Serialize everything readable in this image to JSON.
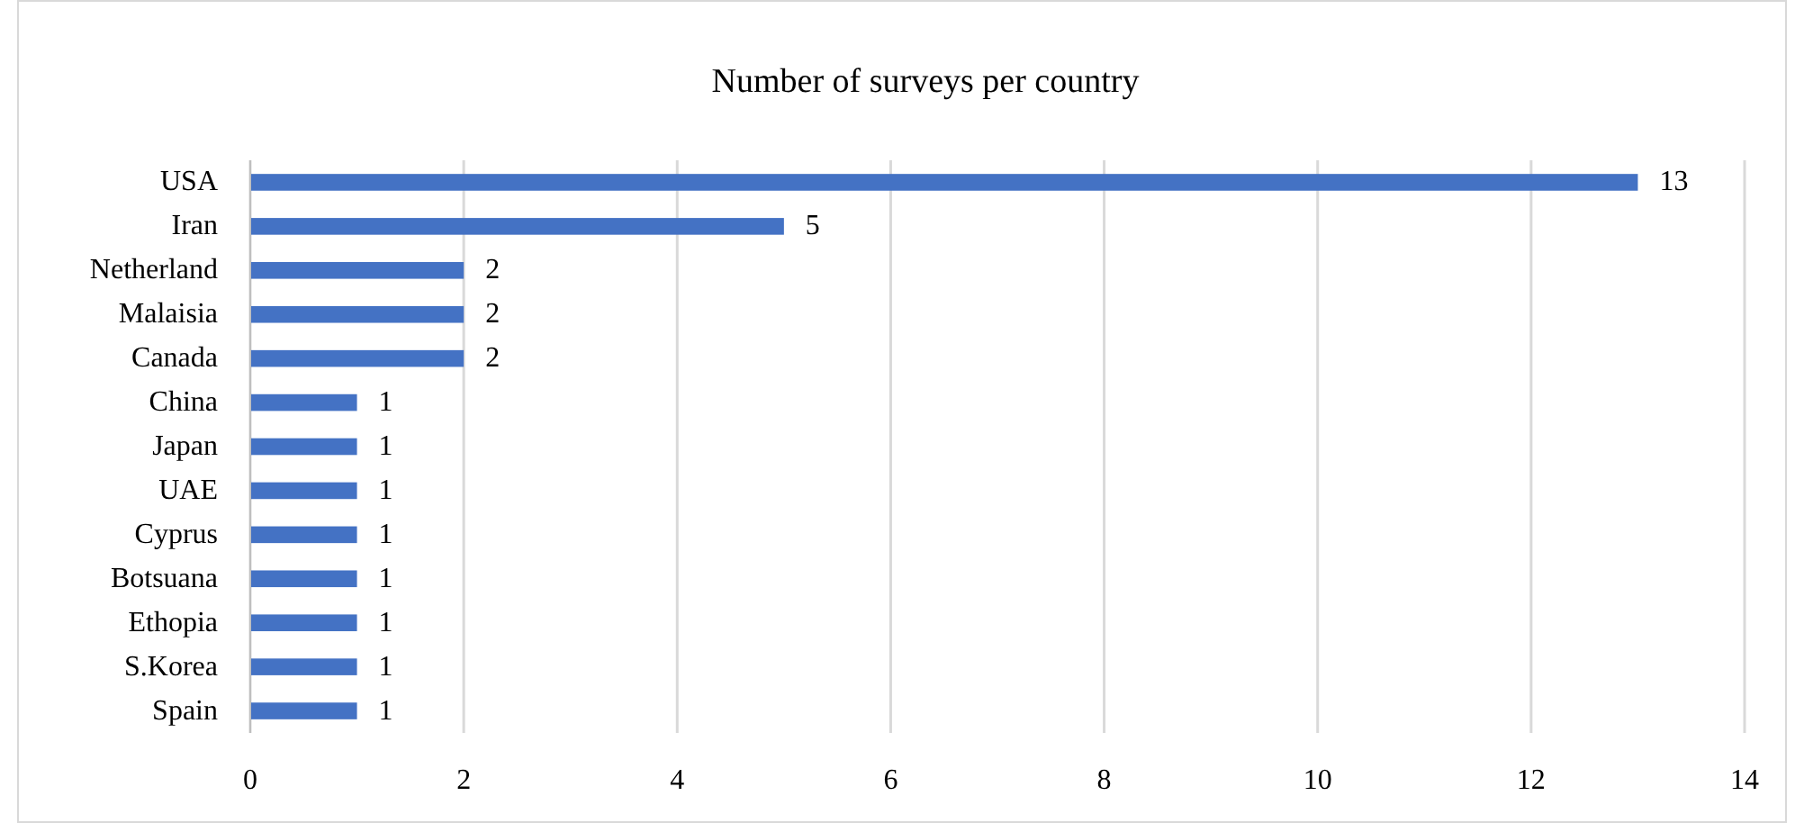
{
  "chart_data": {
    "type": "bar",
    "orientation": "horizontal",
    "title": "Number of surveys per country",
    "categories": [
      "USA",
      "Iran",
      "Netherland",
      "Malaisia",
      "Canada",
      "China",
      "Japan",
      "UAE",
      "Cyprus",
      "Botsuana",
      "Ethopia",
      "S.Korea",
      "Spain"
    ],
    "values": [
      13,
      5,
      2,
      2,
      2,
      1,
      1,
      1,
      1,
      1,
      1,
      1,
      1
    ],
    "color": "#4472c4",
    "xlim": [
      0,
      14
    ],
    "xticks": [
      0,
      2,
      4,
      6,
      8,
      10,
      12,
      14
    ],
    "grid": "x",
    "data_labels": true
  }
}
